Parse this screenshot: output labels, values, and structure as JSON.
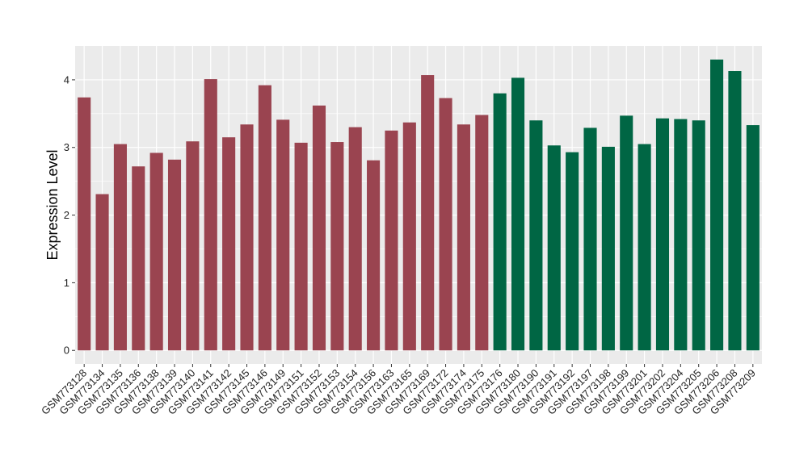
{
  "chart_data": {
    "type": "bar",
    "ylabel": "Expression Level",
    "xlabel": "",
    "ylim": [
      -0.2,
      4.5
    ],
    "yticks": [
      0,
      1,
      2,
      3,
      4
    ],
    "grid": true,
    "legend": "none",
    "categories": [
      "GSM773128",
      "GSM773134",
      "GSM773135",
      "GSM773136",
      "GSM773138",
      "GSM773139",
      "GSM773140",
      "GSM773141",
      "GSM773142",
      "GSM773145",
      "GSM773146",
      "GSM773149",
      "GSM773151",
      "GSM773152",
      "GSM773153",
      "GSM773154",
      "GSM773156",
      "GSM773163",
      "GSM773165",
      "GSM773169",
      "GSM773172",
      "GSM773174",
      "GSM773175",
      "GSM773176",
      "GSM773180",
      "GSM773190",
      "GSM773191",
      "GSM773192",
      "GSM773197",
      "GSM773198",
      "GSM773199",
      "GSM773201",
      "GSM773202",
      "GSM773204",
      "GSM773205",
      "GSM773206",
      "GSM773208",
      "GSM773209"
    ],
    "values": [
      3.74,
      2.31,
      3.05,
      2.72,
      2.92,
      2.82,
      3.09,
      4.01,
      3.15,
      3.34,
      3.92,
      3.41,
      3.07,
      3.62,
      3.08,
      3.3,
      2.81,
      3.25,
      3.37,
      4.07,
      3.73,
      3.34,
      3.48,
      3.8,
      4.03,
      3.4,
      3.03,
      2.93,
      3.29,
      3.01,
      3.47,
      3.05,
      3.43,
      3.42,
      3.4,
      4.3,
      4.13,
      3.33
    ],
    "bar_colors": [
      "#9a4450",
      "#9a4450",
      "#9a4450",
      "#9a4450",
      "#9a4450",
      "#9a4450",
      "#9a4450",
      "#9a4450",
      "#9a4450",
      "#9a4450",
      "#9a4450",
      "#9a4450",
      "#9a4450",
      "#9a4450",
      "#9a4450",
      "#9a4450",
      "#9a4450",
      "#9a4450",
      "#9a4450",
      "#9a4450",
      "#9a4450",
      "#9a4450",
      "#9a4450",
      "#006644",
      "#006644",
      "#006644",
      "#006644",
      "#006644",
      "#006644",
      "#006644",
      "#006644",
      "#006644",
      "#006644",
      "#006644",
      "#006644",
      "#006644",
      "#006644",
      "#006644"
    ],
    "panel_color": "#ebebeb",
    "grid_color": "#ffffff"
  }
}
